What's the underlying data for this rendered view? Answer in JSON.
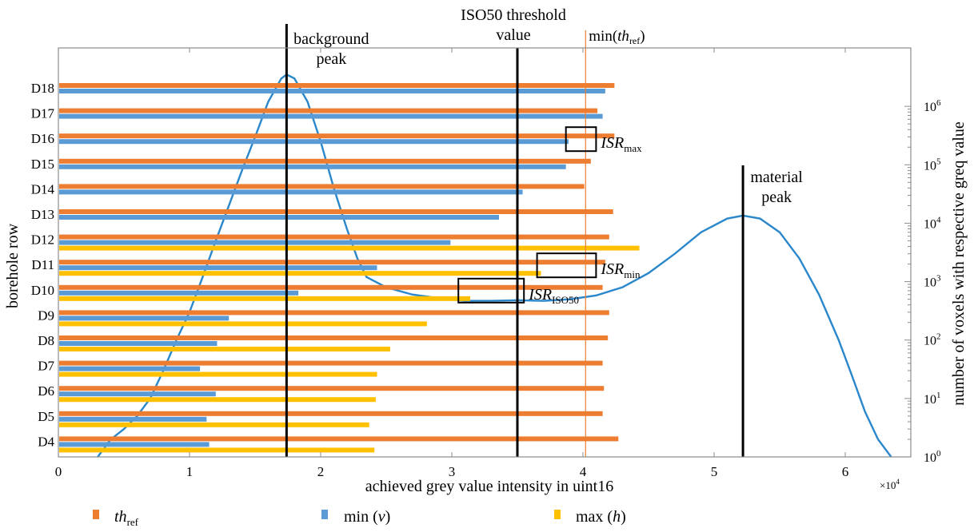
{
  "chart_data": {
    "type": "bar",
    "orientation": "horizontal",
    "x_scale": 10000,
    "xlabel": "achieved grey value intensity in uint16",
    "x_multiplier_label": "×10",
    "x_multiplier_exp": "4",
    "xlim": [
      0,
      65000
    ],
    "x_ticks": [
      0,
      1,
      2,
      3,
      4,
      5,
      6
    ],
    "ylabel": "borehole row",
    "y2label": "number of voxels with respective greq value",
    "y2_scale": "log",
    "y2lim": [
      1,
      10000000
    ],
    "y2_ticks": [
      {
        "base": "10",
        "exp": "0",
        "value": 1
      },
      {
        "base": "10",
        "exp": "1",
        "value": 10
      },
      {
        "base": "10",
        "exp": "2",
        "value": 100
      },
      {
        "base": "10",
        "exp": "3",
        "value": 1000
      },
      {
        "base": "10",
        "exp": "4",
        "value": 10000
      },
      {
        "base": "10",
        "exp": "5",
        "value": 100000
      },
      {
        "base": "10",
        "exp": "6",
        "value": 1000000
      }
    ],
    "categories": [
      "D18",
      "D17",
      "D16",
      "D15",
      "D14",
      "D13",
      "D12",
      "D11",
      "D10",
      "D9",
      "D8",
      "D7",
      "D6",
      "D5",
      "D4"
    ],
    "series": [
      {
        "name": "th_ref",
        "label_main": "th",
        "label_sub": "ref",
        "italic": true,
        "color": "#ED7D31",
        "values": [
          42400,
          41100,
          42400,
          40600,
          40100,
          42300,
          42000,
          41700,
          41500,
          42000,
          41900,
          41500,
          41600,
          41500,
          42700
        ]
      },
      {
        "name": "min (v)",
        "label_main": "min (",
        "label_var": "v",
        "label_end": ")",
        "color": "#5B9BD5",
        "values": [
          41700,
          41500,
          38900,
          38700,
          35400,
          33600,
          29900,
          24300,
          18300,
          13000,
          12100,
          10800,
          12000,
          11300,
          11500
        ]
      },
      {
        "name": "max (h)",
        "label_main": "max (",
        "label_var": "h",
        "label_end": ")",
        "color": "#FFC000",
        "values": [
          null,
          null,
          null,
          null,
          null,
          null,
          44300,
          36800,
          31400,
          28100,
          25300,
          24300,
          24200,
          23700,
          24100
        ]
      }
    ],
    "histogram": {
      "name": "grey value histogram",
      "color": "#0070C0",
      "light_color": "#9DC3E6",
      "points": [
        [
          3000,
          1
        ],
        [
          4000,
          2
        ],
        [
          5000,
          3
        ],
        [
          6000,
          5
        ],
        [
          7000,
          10
        ],
        [
          8000,
          30
        ],
        [
          9000,
          100
        ],
        [
          10000,
          300
        ],
        [
          11000,
          1200
        ],
        [
          12000,
          5000
        ],
        [
          13000,
          20000
        ],
        [
          14000,
          80000
        ],
        [
          15000,
          300000
        ],
        [
          16000,
          1200000
        ],
        [
          17000,
          3000000
        ],
        [
          17400,
          3500000
        ],
        [
          18000,
          3000000
        ],
        [
          19000,
          1200000
        ],
        [
          20000,
          250000
        ],
        [
          21000,
          40000
        ],
        [
          22000,
          8000
        ],
        [
          22800,
          2500
        ],
        [
          23500,
          1200
        ],
        [
          25000,
          800
        ],
        [
          27000,
          600
        ],
        [
          29000,
          520
        ],
        [
          31000,
          470
        ],
        [
          33000,
          470
        ],
        [
          35000,
          480
        ],
        [
          37000,
          470
        ],
        [
          39000,
          500
        ],
        [
          41000,
          580
        ],
        [
          43000,
          800
        ],
        [
          45000,
          1400
        ],
        [
          47000,
          3000
        ],
        [
          49000,
          7000
        ],
        [
          51000,
          12000
        ],
        [
          52200,
          13500
        ],
        [
          53500,
          12000
        ],
        [
          55000,
          7000
        ],
        [
          56500,
          2500
        ],
        [
          58000,
          600
        ],
        [
          59500,
          100
        ],
        [
          60500,
          25
        ],
        [
          61500,
          6
        ],
        [
          62500,
          2
        ],
        [
          63500,
          1
        ]
      ]
    },
    "vlines": [
      {
        "name": "background-peak",
        "x": 17400,
        "label_lines": [
          "background",
          "peak"
        ],
        "color": "#000000"
      },
      {
        "name": "iso50-threshold",
        "x": 35000,
        "label_lines": [
          "ISO50 threshold",
          "value"
        ],
        "color": "#000000"
      },
      {
        "name": "material-peak",
        "x": 52200,
        "label_lines": [
          "material",
          "peak"
        ],
        "color": "#000000"
      },
      {
        "name": "min-th-ref",
        "x": 40200,
        "label_main": "min(",
        "label_ital": "th",
        "label_sub": "ref",
        "label_end": ")",
        "color": "#ED7D31"
      }
    ],
    "annotations": [
      {
        "name": "isr-max",
        "main": "ISR",
        "sub": "max",
        "row": "D16",
        "x_from": 38700,
        "x_to": 41000
      },
      {
        "name": "isr-min",
        "main": "ISR",
        "sub": "min",
        "row": "D11",
        "x_from": 36500,
        "x_to": 41000
      },
      {
        "name": "isr-iso50",
        "main": "ISR",
        "sub": "ISO50",
        "row": "D10",
        "x_from": 30500,
        "x_to": 35500
      }
    ],
    "legend": {
      "placement": "bottom"
    }
  }
}
